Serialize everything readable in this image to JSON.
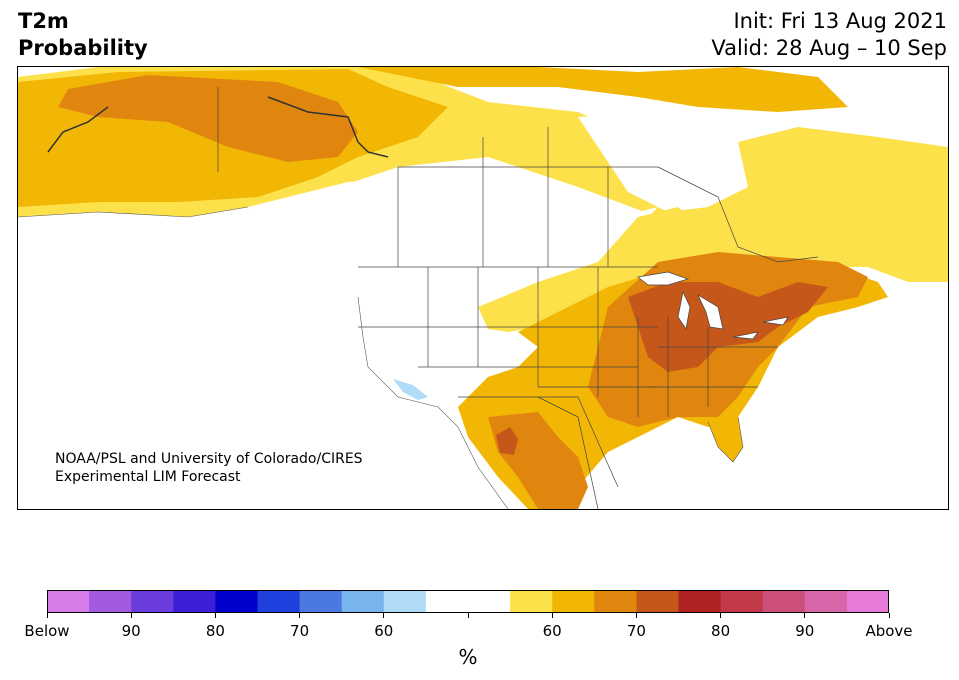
{
  "title": {
    "line1": "T2m",
    "line2": "Probability"
  },
  "header_right": {
    "init": "Init: Fri 13 Aug 2021",
    "valid": "Valid: 28 Aug – 10 Sep"
  },
  "credit": {
    "line1": "NOAA/PSL and University of Colorado/CIRES",
    "line2": "Experimental LIM Forecast"
  },
  "colorbar": {
    "colors": [
      "#d67be8",
      "#a15ae0",
      "#6a3ddc",
      "#3c20d8",
      "#0000cc",
      "#2040dd",
      "#4c78e2",
      "#78b4ee",
      "#b0dcf8",
      "#ffffff",
      "#ffffff",
      "#fde14a",
      "#f2b705",
      "#e0860f",
      "#c6571a",
      "#b02222",
      "#c23a4a",
      "#cc507a",
      "#d865a8",
      "#e67ad6"
    ],
    "tick_labels": [
      "Below",
      "90",
      "80",
      "70",
      "60",
      "",
      "60",
      "70",
      "80",
      "90",
      "Above"
    ],
    "unit": "%"
  },
  "legend_colors": {
    "light_yellow": "#fde14a",
    "yellow": "#f2b705",
    "orange": "#e0860f",
    "dark_orange": "#c6571a",
    "light_blue": "#b0dcf8"
  }
}
